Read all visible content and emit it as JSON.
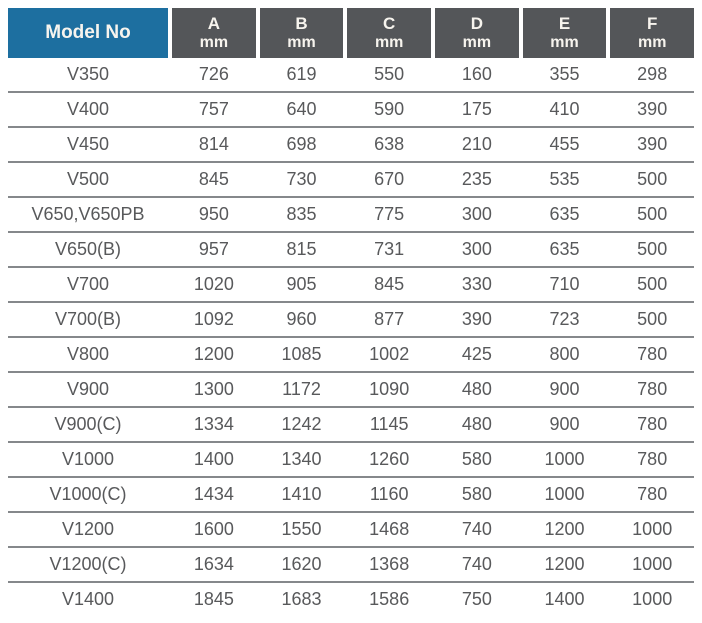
{
  "table": {
    "model_header": "Model No",
    "columns": [
      {
        "letter": "A",
        "unit": "mm"
      },
      {
        "letter": "B",
        "unit": "mm"
      },
      {
        "letter": "C",
        "unit": "mm"
      },
      {
        "letter": "D",
        "unit": "mm"
      },
      {
        "letter": "E",
        "unit": "mm"
      },
      {
        "letter": "F",
        "unit": "mm"
      }
    ],
    "rows": [
      {
        "model": "V350",
        "values": [
          "726",
          "619",
          "550",
          "160",
          "355",
          "298"
        ]
      },
      {
        "model": "V400",
        "values": [
          "757",
          "640",
          "590",
          "175",
          "410",
          "390"
        ]
      },
      {
        "model": "V450",
        "values": [
          "814",
          "698",
          "638",
          "210",
          "455",
          "390"
        ]
      },
      {
        "model": "V500",
        "values": [
          "845",
          "730",
          "670",
          "235",
          "535",
          "500"
        ]
      },
      {
        "model": "V650,V650PB",
        "values": [
          "950",
          "835",
          "775",
          "300",
          "635",
          "500"
        ]
      },
      {
        "model": "V650(B)",
        "values": [
          "957",
          "815",
          "731",
          "300",
          "635",
          "500"
        ]
      },
      {
        "model": "V700",
        "values": [
          "1020",
          "905",
          "845",
          "330",
          "710",
          "500"
        ]
      },
      {
        "model": "V700(B)",
        "values": [
          "1092",
          "960",
          "877",
          "390",
          "723",
          "500"
        ]
      },
      {
        "model": "V800",
        "values": [
          "1200",
          "1085",
          "1002",
          "425",
          "800",
          "780"
        ]
      },
      {
        "model": "V900",
        "values": [
          "1300",
          "1172",
          "1090",
          "480",
          "900",
          "780"
        ]
      },
      {
        "model": "V900(C)",
        "values": [
          "1334",
          "1242",
          "1145",
          "480",
          "900",
          "780"
        ]
      },
      {
        "model": "V1000",
        "values": [
          "1400",
          "1340",
          "1260",
          "580",
          "1000",
          "780"
        ]
      },
      {
        "model": "V1000(C)",
        "values": [
          "1434",
          "1410",
          "1160",
          "580",
          "1000",
          "780"
        ]
      },
      {
        "model": "V1200",
        "values": [
          "1600",
          "1550",
          "1468",
          "740",
          "1200",
          "1000"
        ]
      },
      {
        "model": "V1200(C)",
        "values": [
          "1634",
          "1620",
          "1368",
          "740",
          "1200",
          "1000"
        ]
      },
      {
        "model": "V1400",
        "values": [
          "1845",
          "1683",
          "1586",
          "750",
          "1400",
          "1000"
        ]
      }
    ]
  },
  "colors": {
    "page_bg": "#ffffff",
    "model_header_bg": "#1d6fa0",
    "dim_header_bg": "#545659",
    "header_text": "#f7f4ee",
    "body_text": "#58595b",
    "row_divider": "#85888b"
  }
}
